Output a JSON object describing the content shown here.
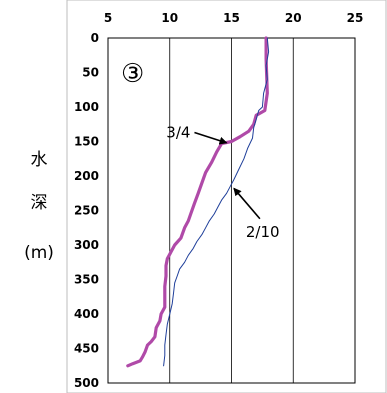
{
  "chart_data": {
    "type": "line",
    "panel_label": "③",
    "ylabel_chars": [
      "水",
      "深",
      "(m)"
    ],
    "xlim": [
      5,
      25
    ],
    "ylim": [
      0,
      500
    ],
    "x_ticks": [
      "5",
      "10",
      "15",
      "20",
      "25"
    ],
    "y_ticks": [
      "0",
      "50",
      "100",
      "150",
      "200",
      "250",
      "300",
      "350",
      "400",
      "450",
      "500"
    ],
    "y_inverted": true,
    "grid": "vertical",
    "colors": {
      "series_3_4": "#b04aa8",
      "series_2_10": "#1f3f9a"
    },
    "series": [
      {
        "name": "3/4",
        "color": "#b04aa8",
        "points": [
          [
            17.8,
            0
          ],
          [
            17.8,
            30
          ],
          [
            17.9,
            80
          ],
          [
            17.7,
            105
          ],
          [
            17.0,
            112
          ],
          [
            16.8,
            125
          ],
          [
            16.4,
            135
          ],
          [
            15.7,
            143
          ],
          [
            15.0,
            150
          ],
          [
            14.2,
            153
          ],
          [
            13.8,
            165
          ],
          [
            13.4,
            180
          ],
          [
            12.9,
            195
          ],
          [
            12.6,
            210
          ],
          [
            12.3,
            225
          ],
          [
            12.0,
            240
          ],
          [
            11.7,
            255
          ],
          [
            11.5,
            265
          ],
          [
            11.2,
            275
          ],
          [
            10.9,
            290
          ],
          [
            10.4,
            300
          ],
          [
            10.1,
            310
          ],
          [
            9.8,
            320
          ],
          [
            9.7,
            330
          ],
          [
            9.7,
            345
          ],
          [
            9.6,
            360
          ],
          [
            9.6,
            375
          ],
          [
            9.6,
            390
          ],
          [
            9.3,
            400
          ],
          [
            9.2,
            410
          ],
          [
            8.9,
            420
          ],
          [
            8.8,
            433
          ],
          [
            8.5,
            440
          ],
          [
            8.2,
            445
          ],
          [
            8.0,
            455
          ],
          [
            7.8,
            462
          ],
          [
            7.6,
            468
          ],
          [
            7.0,
            472
          ],
          [
            6.6,
            475
          ]
        ]
      },
      {
        "name": "2/10",
        "color": "#1f3f9a",
        "points": [
          [
            17.9,
            0
          ],
          [
            18.0,
            20
          ],
          [
            17.8,
            40
          ],
          [
            17.9,
            60
          ],
          [
            17.6,
            80
          ],
          [
            17.5,
            100
          ],
          [
            17.2,
            105
          ],
          [
            17.0,
            118
          ],
          [
            16.8,
            130
          ],
          [
            16.7,
            145
          ],
          [
            16.3,
            160
          ],
          [
            16.0,
            175
          ],
          [
            15.6,
            190
          ],
          [
            15.2,
            205
          ],
          [
            14.9,
            215
          ],
          [
            14.6,
            225
          ],
          [
            14.2,
            235
          ],
          [
            13.9,
            245
          ],
          [
            13.6,
            255
          ],
          [
            13.2,
            265
          ],
          [
            12.9,
            275
          ],
          [
            12.6,
            285
          ],
          [
            12.2,
            295
          ],
          [
            11.9,
            305
          ],
          [
            11.5,
            315
          ],
          [
            11.2,
            325
          ],
          [
            10.8,
            335
          ],
          [
            10.6,
            345
          ],
          [
            10.4,
            355
          ],
          [
            10.3,
            370
          ],
          [
            10.2,
            385
          ],
          [
            10.0,
            400
          ],
          [
            9.8,
            415
          ],
          [
            9.7,
            430
          ],
          [
            9.6,
            445
          ],
          [
            9.6,
            460
          ],
          [
            9.5,
            475
          ]
        ]
      }
    ],
    "annotations": [
      {
        "text": "3/4",
        "target": [
          14.6,
          152
        ],
        "from": [
          12.0,
          137
        ]
      },
      {
        "text": "2/10",
        "target": [
          15.2,
          218
        ],
        "from": [
          17.3,
          262
        ]
      }
    ]
  }
}
